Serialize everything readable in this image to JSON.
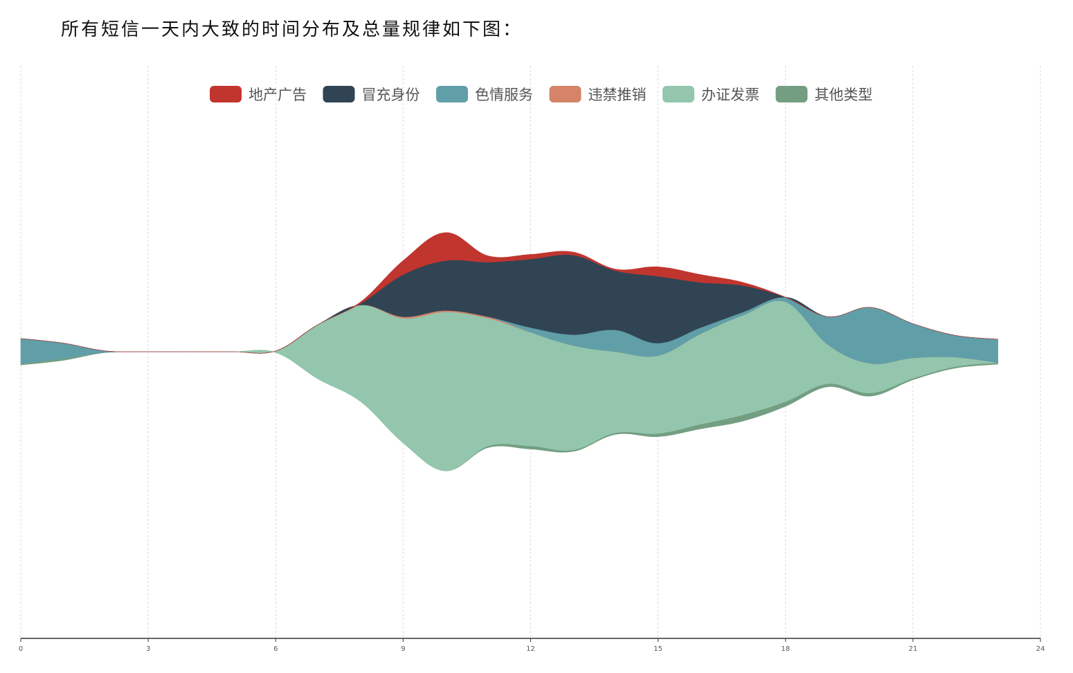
{
  "page": {
    "caption": "所有短信一天内大致的时间分布及总量规律如下图："
  },
  "chart_data": {
    "type": "area",
    "subtype": "streamgraph",
    "title": "",
    "xlabel": "",
    "ylabel": "",
    "xlim": [
      0,
      24
    ],
    "x_ticks": [
      "0",
      "3",
      "6",
      "9",
      "12",
      "15",
      "18",
      "21",
      "24"
    ],
    "grid": "vertical dashed",
    "legend_position": "top-center",
    "x": [
      0,
      1,
      2,
      3,
      4,
      5,
      6,
      7,
      8,
      9,
      10,
      11,
      12,
      13,
      14,
      15,
      16,
      17,
      18,
      19,
      20,
      21,
      22,
      23
    ],
    "series": [
      {
        "name": "其他类型",
        "color": "#739e82",
        "values": [
          1,
          1,
          0,
          0,
          0,
          0,
          0,
          0,
          0,
          0,
          0,
          1,
          2,
          1,
          1,
          2,
          3,
          4,
          3,
          2,
          2,
          1,
          1,
          1
        ]
      },
      {
        "name": "办证发票",
        "color": "#93c6ad",
        "values": [
          0,
          0,
          0,
          0,
          0,
          0,
          1,
          35,
          62,
          80,
          102,
          82,
          73,
          67,
          52,
          50,
          58,
          64,
          64,
          25,
          19,
          13,
          6,
          0
        ]
      },
      {
        "name": "违禁推销",
        "color": "#d5846a",
        "values": [
          0,
          0,
          0,
          0,
          0,
          0,
          0,
          0,
          0,
          1,
          1,
          1,
          0,
          0,
          0,
          0,
          0,
          0,
          0,
          0,
          0,
          0,
          0,
          0
        ]
      },
      {
        "name": "色情服务",
        "color": "#619fa8",
        "values": [
          16,
          10,
          1,
          0,
          0,
          0,
          0,
          0,
          0,
          0,
          0,
          0,
          3,
          7,
          14,
          8,
          4,
          2,
          3,
          18,
          36,
          22,
          14,
          15
        ]
      },
      {
        "name": "冒充身份",
        "color": "#304454",
        "values": [
          0,
          0,
          0,
          0,
          0,
          0,
          0,
          0,
          1,
          27,
          32,
          35,
          44,
          51,
          38,
          43,
          29,
          17,
          0,
          0,
          0,
          0,
          0,
          0
        ]
      },
      {
        "name": "地产广告",
        "color": "#c1352f",
        "values": [
          0,
          0,
          0,
          0,
          0,
          0,
          0,
          0,
          1,
          9,
          18,
          4,
          3,
          2,
          1,
          6,
          5,
          2,
          0,
          0,
          0,
          0,
          0,
          0
        ]
      }
    ],
    "legend_order": [
      "地产广告",
      "冒充身份",
      "色情服务",
      "违禁推销",
      "办证发票",
      "其他类型"
    ]
  }
}
